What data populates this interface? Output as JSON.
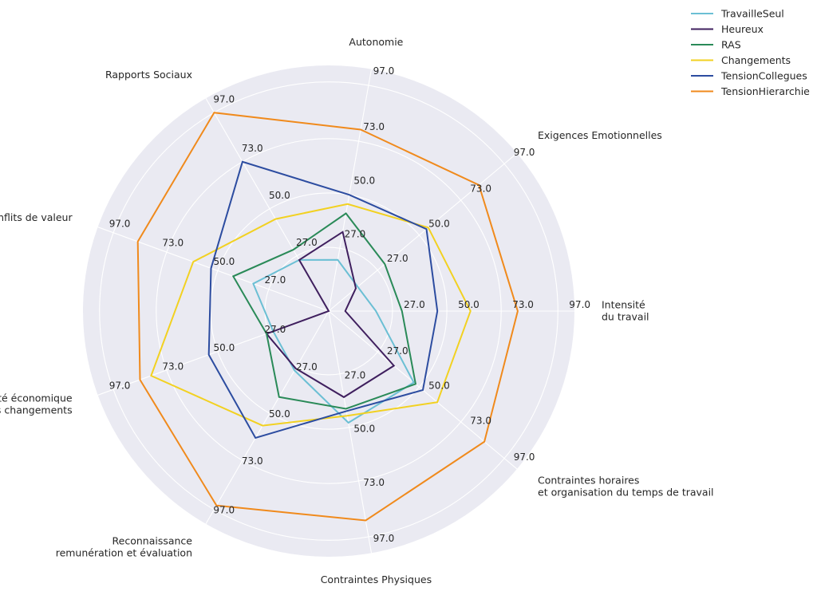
{
  "chart_data": {
    "type": "radar",
    "axes": [
      {
        "lines": [
          "Intensité",
          "du travail"
        ]
      },
      {
        "lines": [
          "Exigences Emotionnelles"
        ]
      },
      {
        "lines": [
          "Autonomie"
        ]
      },
      {
        "lines": [
          "Rapports Sociaux"
        ]
      },
      {
        "lines": [
          "Conflits de valeur"
        ]
      },
      {
        "lines": [
          "Insécurité économique",
          "et ses changements"
        ]
      },
      {
        "lines": [
          "Reconnaissance",
          "remunération et évaluation"
        ]
      },
      {
        "lines": [
          "Contraintes Physiques"
        ]
      },
      {
        "lines": [
          "Contraintes horaires",
          "et organisation du temps de travail"
        ]
      }
    ],
    "ticks": [
      "27.0",
      "50.0",
      "73.0",
      "97.0"
    ],
    "rmax": 104,
    "series": [
      {
        "name": "TravailleSeul",
        "color": "#6bbfd4",
        "values": [
          20,
          16,
          22,
          25,
          34,
          25,
          29,
          48,
          47
        ]
      },
      {
        "name": "Heureux",
        "color": "#3f1f5e",
        "values": [
          7,
          15,
          34,
          25,
          0,
          28,
          28,
          37,
          36
        ]
      },
      {
        "name": "RAS",
        "color": "#2a8a58",
        "values": [
          31,
          31,
          42,
          30,
          43,
          28,
          42,
          42,
          48
        ]
      },
      {
        "name": "Changements",
        "color": "#f2d121",
        "values": [
          60,
          55,
          46,
          45,
          61,
          80,
          56,
          45,
          60
        ]
      },
      {
        "name": "TensionCollegues",
        "color": "#2c4ca0",
        "values": [
          46,
          54,
          50,
          73,
          53,
          54,
          62,
          43,
          52
        ]
      },
      {
        "name": "TensionHierarchie",
        "color": "#f08a1c",
        "values": [
          80,
          83,
          78,
          97,
          86,
          85,
          95,
          90,
          86
        ]
      }
    ]
  }
}
